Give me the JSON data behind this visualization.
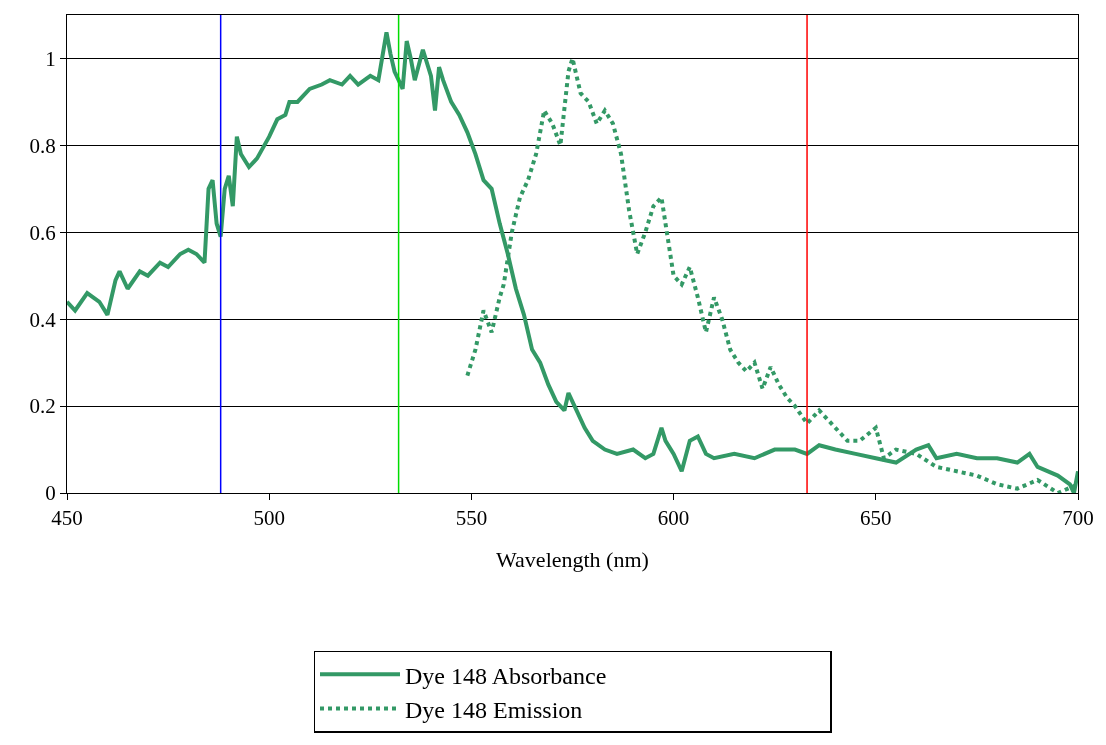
{
  "chart_data": {
    "type": "line",
    "xlabel": "Wavelength (nm)",
    "xlim": [
      450,
      700
    ],
    "xticks": [
      450,
      500,
      550,
      600,
      650,
      700
    ],
    "ylim": [
      0,
      1.1
    ],
    "yticks": [
      0,
      0.2,
      0.4,
      0.6,
      0.8,
      1
    ],
    "grid": "y",
    "legend": "bottom",
    "marker": "none",
    "series": [
      {
        "name": "Dye 148 Absorbance",
        "color": "#339966",
        "line_style": "solid",
        "x": [
          450,
          452,
          455,
          458,
          460,
          462,
          463,
          465,
          468,
          470,
          473,
          475,
          478,
          480,
          482,
          484,
          485,
          486,
          487,
          488,
          489,
          490,
          491,
          492,
          493,
          495,
          497,
          500,
          502,
          504,
          505,
          507,
          510,
          513,
          515,
          518,
          520,
          522,
          525,
          527,
          529,
          530,
          531,
          532,
          533,
          534,
          535,
          536,
          538,
          540,
          541,
          542,
          543,
          545,
          547,
          549,
          551,
          553,
          555,
          557,
          559,
          561,
          563,
          565,
          567,
          569,
          571,
          573,
          574,
          576,
          578,
          580,
          583,
          586,
          590,
          593,
          595,
          597,
          598,
          600,
          602,
          604,
          606,
          608,
          610,
          615,
          620,
          625,
          630,
          633,
          636,
          640,
          645,
          650,
          655,
          660,
          663,
          665,
          670,
          675,
          680,
          685,
          688,
          690,
          695,
          698,
          699,
          700
        ],
        "values": [
          0.44,
          0.42,
          0.46,
          0.44,
          0.41,
          0.49,
          0.51,
          0.47,
          0.51,
          0.5,
          0.53,
          0.52,
          0.55,
          0.56,
          0.55,
          0.53,
          0.7,
          0.72,
          0.62,
          0.59,
          0.7,
          0.73,
          0.66,
          0.82,
          0.78,
          0.75,
          0.77,
          0.82,
          0.86,
          0.87,
          0.9,
          0.9,
          0.93,
          0.94,
          0.95,
          0.94,
          0.96,
          0.94,
          0.96,
          0.95,
          1.06,
          1.01,
          0.97,
          0.95,
          0.93,
          1.04,
          1.0,
          0.95,
          1.02,
          0.96,
          0.88,
          0.98,
          0.95,
          0.9,
          0.87,
          0.83,
          0.78,
          0.72,
          0.7,
          0.62,
          0.55,
          0.47,
          0.41,
          0.33,
          0.3,
          0.25,
          0.21,
          0.19,
          0.23,
          0.19,
          0.15,
          0.12,
          0.1,
          0.09,
          0.1,
          0.08,
          0.09,
          0.15,
          0.12,
          0.09,
          0.05,
          0.12,
          0.13,
          0.09,
          0.08,
          0.09,
          0.08,
          0.1,
          0.1,
          0.09,
          0.11,
          0.1,
          0.09,
          0.08,
          0.07,
          0.1,
          0.11,
          0.08,
          0.09,
          0.08,
          0.08,
          0.07,
          0.09,
          0.06,
          0.04,
          0.02,
          0.0,
          0.05
        ]
      },
      {
        "name": "Dye 148 Emission",
        "color": "#339966",
        "line_style": "dotted",
        "x": [
          549,
          551,
          553,
          555,
          557,
          558,
          560,
          562,
          564,
          566,
          568,
          570,
          572,
          574,
          575,
          577,
          579,
          581,
          583,
          585,
          587,
          589,
          591,
          593,
          595,
          597,
          598,
          600,
          602,
          604,
          606,
          608,
          610,
          612,
          614,
          616,
          618,
          620,
          622,
          624,
          626,
          628,
          630,
          633,
          636,
          640,
          643,
          646,
          650,
          652,
          655,
          660,
          665,
          670,
          675,
          680,
          685,
          690,
          695,
          700
        ],
        "values": [
          0.27,
          0.33,
          0.42,
          0.37,
          0.45,
          0.48,
          0.6,
          0.68,
          0.72,
          0.78,
          0.88,
          0.85,
          0.8,
          0.97,
          1.0,
          0.92,
          0.9,
          0.85,
          0.88,
          0.85,
          0.78,
          0.65,
          0.55,
          0.6,
          0.66,
          0.68,
          0.62,
          0.5,
          0.48,
          0.52,
          0.45,
          0.37,
          0.45,
          0.4,
          0.33,
          0.3,
          0.28,
          0.3,
          0.24,
          0.29,
          0.25,
          0.22,
          0.2,
          0.16,
          0.19,
          0.15,
          0.12,
          0.12,
          0.15,
          0.08,
          0.1,
          0.09,
          0.06,
          0.05,
          0.04,
          0.02,
          0.01,
          0.03,
          0.0,
          0.02
        ]
      }
    ],
    "ref_lines": [
      {
        "axis": "x",
        "value": 488,
        "color": "#0000ff",
        "line_style": "solid"
      },
      {
        "axis": "x",
        "value": 532,
        "color": "#00dd00",
        "line_style": "solid"
      },
      {
        "axis": "x",
        "value": 633,
        "color": "#ff0000",
        "line_style": "solid"
      }
    ]
  }
}
